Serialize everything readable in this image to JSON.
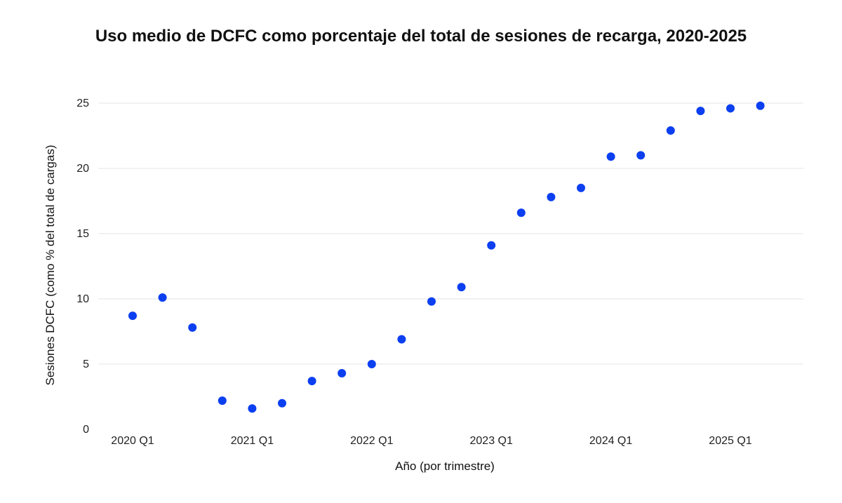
{
  "chart_data": {
    "type": "scatter",
    "title": "Uso medio de DCFC como porcentaje del total de sesiones de recarga, 2020-2025",
    "xlabel": "Año (por trimestre)",
    "ylabel": "Sesiones DCFC (como % del total de cargas)",
    "x_tick_labels": [
      "2020 Q1",
      "2021 Q1",
      "2022 Q1",
      "2023 Q1",
      "2024 Q1",
      "2025 Q1"
    ],
    "y_ticks": [
      0,
      5,
      10,
      15,
      20,
      25
    ],
    "ylim": [
      0,
      25
    ],
    "grid": true,
    "legend": "none",
    "marker_color": "#0b3ff0",
    "series": [
      {
        "x": [
          "2020 Q1",
          "2020 Q2",
          "2020 Q3",
          "2020 Q4",
          "2021 Q1",
          "2021 Q2",
          "2021 Q3",
          "2021 Q4",
          "2022 Q1",
          "2022 Q2",
          "2022 Q3",
          "2022 Q4",
          "2023 Q1",
          "2023 Q2",
          "2023 Q3",
          "2023 Q4",
          "2024 Q1",
          "2024 Q2",
          "2024 Q3",
          "2024 Q4",
          "2025 Q1",
          "2025 Q2"
        ],
        "values": [
          8.7,
          10.1,
          7.8,
          2.2,
          1.6,
          2.0,
          3.7,
          4.3,
          5.0,
          6.9,
          9.8,
          10.9,
          14.1,
          16.6,
          17.8,
          18.5,
          20.9,
          21.0,
          22.9,
          24.4,
          24.6,
          24.8
        ]
      }
    ]
  }
}
